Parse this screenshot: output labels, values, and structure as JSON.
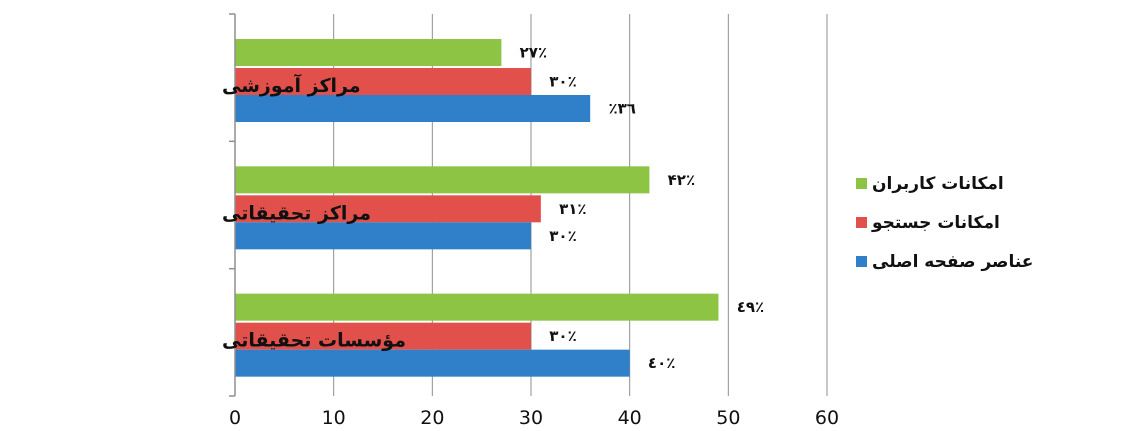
{
  "chart_data": {
    "type": "bar",
    "orientation": "horizontal",
    "categories": [
      "مراکز آموزشی",
      "مراکز تحقیقاتی",
      "مؤسسات تحقیقاتی"
    ],
    "series": [
      {
        "name": "امکانات کاربران",
        "color": "#8dc443",
        "values": [
          27,
          42,
          49
        ],
        "data_labels": [
          "۲۷٪",
          "۴۲٪",
          "٤۹٪"
        ]
      },
      {
        "name": "امکانات جستجو",
        "color": "#e2504c",
        "values": [
          30,
          31,
          30
        ],
        "data_labels": [
          "۳۰٪",
          "۳۱٪",
          "۳۰٪"
        ]
      },
      {
        "name": "عناصر صفحه اصلی",
        "color": "#2f80c8",
        "values": [
          36,
          30,
          40
        ],
        "data_labels": [
          "۳٦٪",
          "۳۰٪",
          "٤۰٪"
        ]
      }
    ],
    "xlim": [
      0,
      60
    ],
    "x_ticks": [
      "0",
      "10",
      "20",
      "30",
      "40",
      "50",
      "60"
    ],
    "grid": "vertical",
    "legend_position": "right",
    "title": "",
    "xlabel": "",
    "ylabel": ""
  }
}
